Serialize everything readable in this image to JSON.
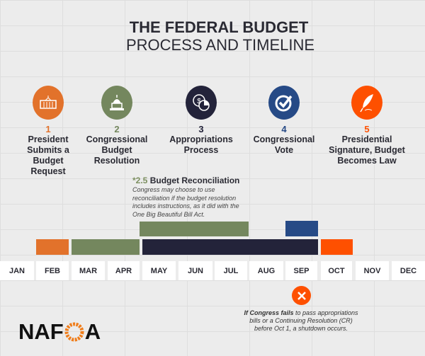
{
  "title": {
    "line1": "THE FEDERAL BUDGET",
    "line2": "PROCESS AND TIMELINE"
  },
  "steps": [
    {
      "number": "1",
      "label": "President Submits a Budget Request",
      "color": "#e2722b",
      "icon": "white-house-icon"
    },
    {
      "number": "2",
      "label": "Congressional Budget Resolution",
      "color": "#74875e",
      "icon": "capitol-icon"
    },
    {
      "number": "3",
      "label": "Appropriations Process",
      "color": "#23233a",
      "icon": "money-chart-icon"
    },
    {
      "number": "4",
      "label": "Congressional Vote",
      "color": "#264a86",
      "icon": "checkmark-icon"
    },
    {
      "number": "5",
      "label": "Presidential Signature, Budget Becomes Law",
      "color": "#fe5000",
      "icon": "quill-icon"
    }
  ],
  "reconciliation": {
    "number": "*2.5",
    "heading": "Budget Reconciliation",
    "text": "Congress may choose to use reconciliation if the budget resolution includes instructions, as it did with the One Big Beautiful Bill Act."
  },
  "months": [
    "JAN",
    "FEB",
    "MAR",
    "APR",
    "MAY",
    "JUN",
    "JUL",
    "AUG",
    "SEP",
    "OCT",
    "NOV",
    "DEC"
  ],
  "timeline_bars": [
    {
      "step": "1",
      "start": "FEB",
      "end": "FEB",
      "color": "#e2722b"
    },
    {
      "step": "2",
      "start": "MAR",
      "end": "APR",
      "color": "#74875e"
    },
    {
      "step": "2.5",
      "start": "MAY",
      "end": "JUL",
      "color": "#74875e"
    },
    {
      "step": "3",
      "start": "MAY",
      "end": "SEP",
      "color": "#23233a"
    },
    {
      "step": "4",
      "start": "SEP",
      "end": "SEP",
      "color": "#264a86"
    },
    {
      "step": "5",
      "start": "OCT",
      "end": "OCT",
      "color": "#fe5000"
    }
  ],
  "shutdown": {
    "bold": "If Congress fails",
    "text": " to pass appropriations bills or a Continuing Resolution (CR) before Oct 1, a shutdown occurs.",
    "icon": "x-circle-icon"
  },
  "logo": {
    "text": "NAFOA"
  }
}
